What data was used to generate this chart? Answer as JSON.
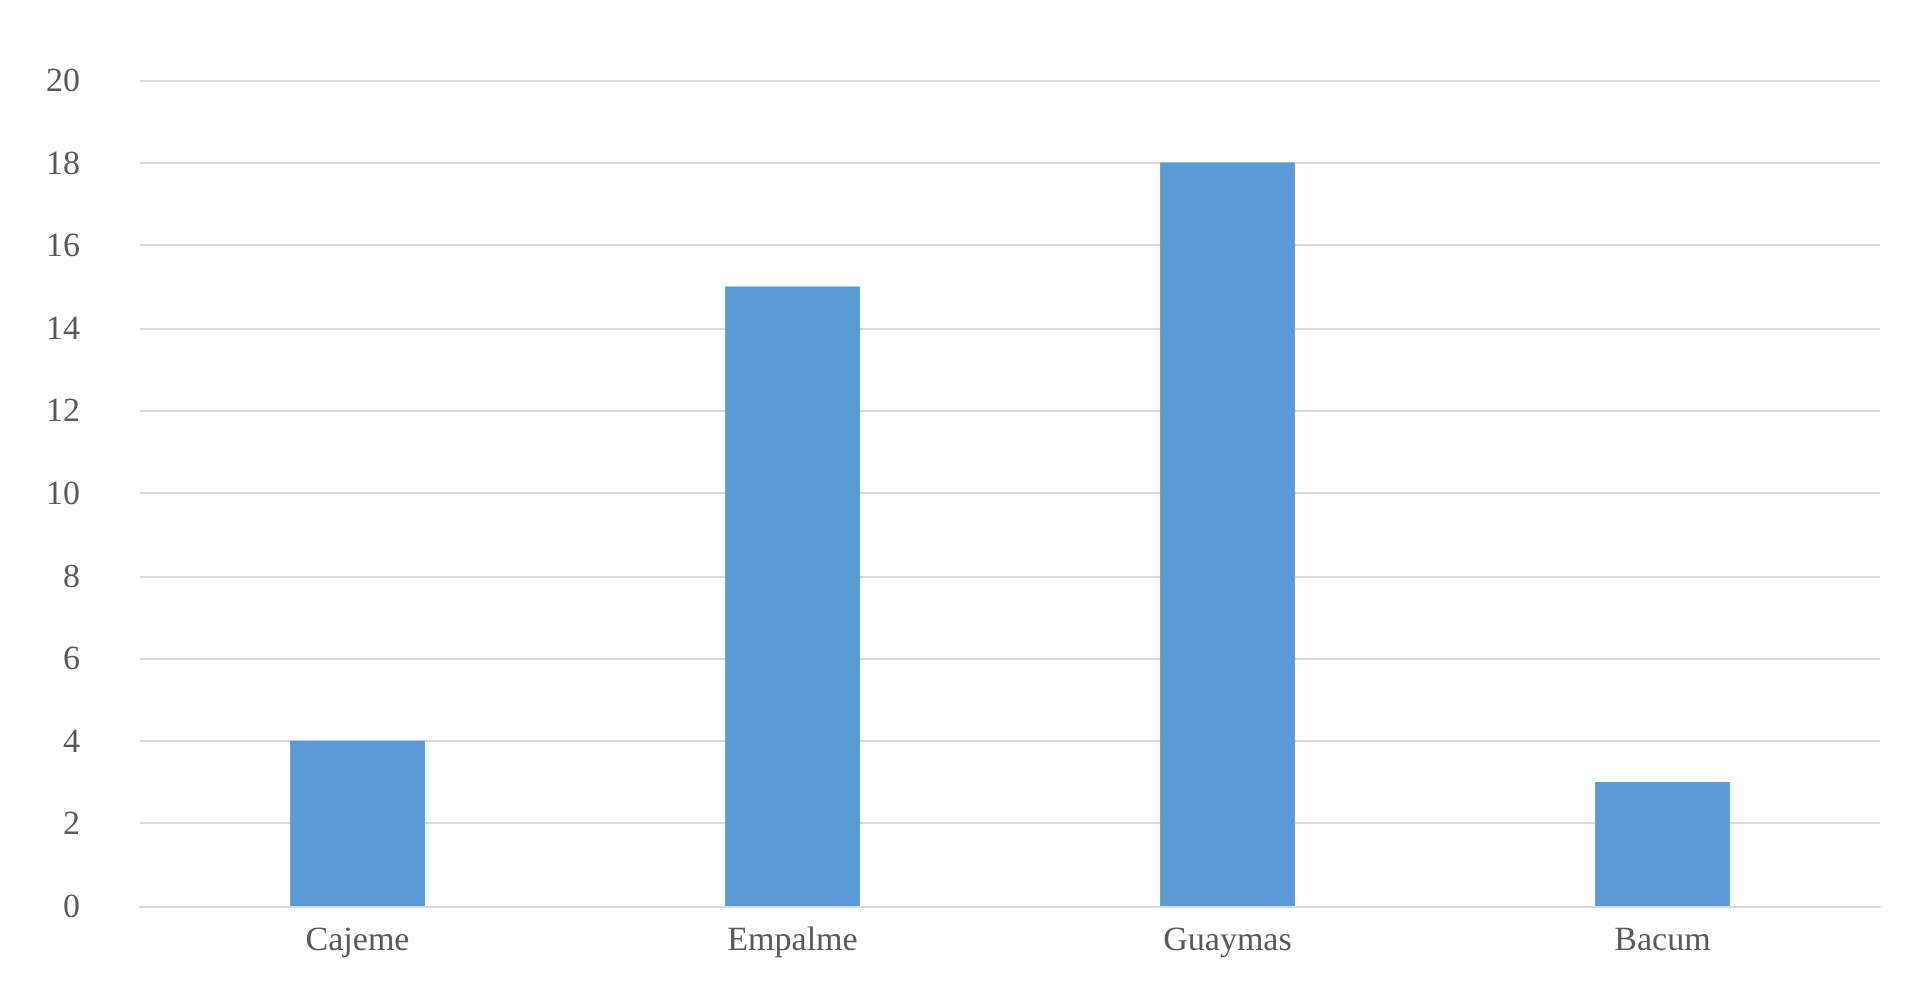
{
  "chart_data": {
    "type": "bar",
    "categories": [
      "Cajeme",
      "Empalme",
      "Guaymas",
      "Bacum"
    ],
    "values": [
      4,
      15,
      18,
      3
    ],
    "color": "#5b9bd5",
    "ylim": [
      0,
      20
    ],
    "yticks": [
      0,
      2,
      4,
      6,
      8,
      10,
      12,
      14,
      16,
      18,
      20
    ],
    "grid": "y"
  }
}
